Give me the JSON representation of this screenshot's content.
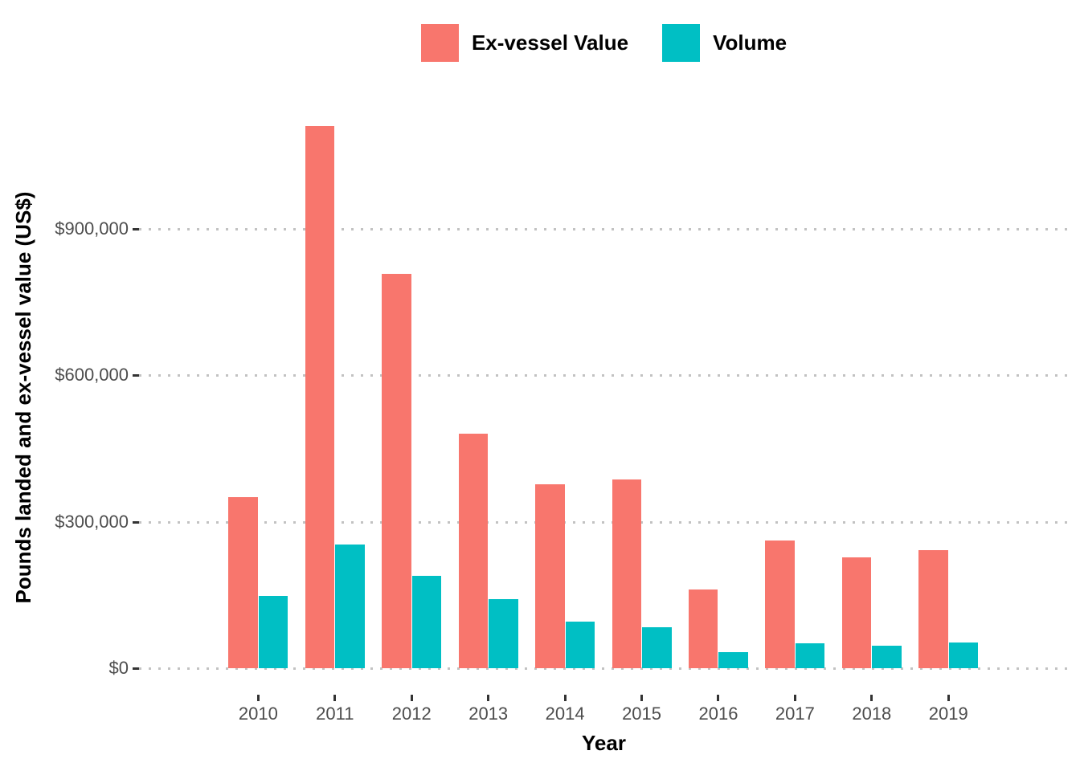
{
  "chart_data": {
    "type": "bar",
    "title": "",
    "xlabel": "Year",
    "ylabel": "Pounds landed and ex-vessel value (US$)",
    "categories": [
      "2010",
      "2011",
      "2012",
      "2013",
      "2014",
      "2015",
      "2016",
      "2017",
      "2018",
      "2019"
    ],
    "series": [
      {
        "name": "Ex-vessel Value",
        "color": "#F8766D",
        "values": [
          350000,
          1110000,
          808000,
          480000,
          377000,
          387000,
          161000,
          262000,
          227000,
          242000
        ]
      },
      {
        "name": "Volume",
        "color": "#00BFC4",
        "values": [
          148000,
          254000,
          190000,
          142000,
          95000,
          84000,
          33000,
          51000,
          46000,
          53000
        ]
      }
    ],
    "y_ticks": [
      {
        "value": 0,
        "label": "$0"
      },
      {
        "value": 300000,
        "label": "$300,000"
      },
      {
        "value": 600000,
        "label": "$600,000"
      },
      {
        "value": 900000,
        "label": "$900,000"
      }
    ],
    "ylim": [
      0,
      1165000
    ],
    "grid": "horizontal-dotted-major",
    "legend_position": "top-center",
    "bar_mode": "grouped"
  },
  "colors": {
    "ex_vessel": "#F8766D",
    "volume": "#00BFC4",
    "gridline": "#c2c2c2",
    "tick_text": "#4d4d4d",
    "title_text": "#000000",
    "background": "#ffffff"
  }
}
